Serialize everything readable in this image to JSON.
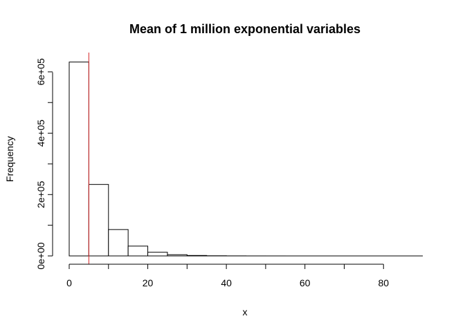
{
  "chart_data": {
    "type": "bar",
    "title": "Mean of 1 million exponential variables",
    "xlabel": "x",
    "ylabel": "Frequency",
    "bin_width": 5,
    "bins": [
      {
        "start": 0,
        "end": 5,
        "count": 632000
      },
      {
        "start": 5,
        "end": 10,
        "count": 233000
      },
      {
        "start": 10,
        "end": 15,
        "count": 86000
      },
      {
        "start": 15,
        "end": 20,
        "count": 32000
      },
      {
        "start": 20,
        "end": 25,
        "count": 12000
      },
      {
        "start": 25,
        "end": 30,
        "count": 4000
      },
      {
        "start": 30,
        "end": 35,
        "count": 1500
      },
      {
        "start": 35,
        "end": 40,
        "count": 550
      },
      {
        "start": 40,
        "end": 45,
        "count": 200
      },
      {
        "start": 45,
        "end": 50,
        "count": 75
      },
      {
        "start": 50,
        "end": 55,
        "count": 30
      },
      {
        "start": 55,
        "end": 60,
        "count": 10
      },
      {
        "start": 60,
        "end": 65,
        "count": 4
      },
      {
        "start": 65,
        "end": 70,
        "count": 2
      },
      {
        "start": 70,
        "end": 75,
        "count": 1
      },
      {
        "start": 75,
        "end": 80,
        "count": 0
      },
      {
        "start": 80,
        "end": 85,
        "count": 0
      },
      {
        "start": 85,
        "end": 90,
        "count": 1
      }
    ],
    "xlim": [
      0,
      90
    ],
    "ylim": [
      0,
      650000
    ],
    "x_ticks": [
      {
        "value": 0,
        "label": "0"
      },
      {
        "value": 20,
        "label": "20"
      },
      {
        "value": 40,
        "label": "40"
      },
      {
        "value": 60,
        "label": "60"
      },
      {
        "value": 80,
        "label": "80"
      }
    ],
    "x_minor_ticks": [
      10,
      30,
      50,
      70
    ],
    "y_ticks": [
      {
        "value": 0,
        "label": "0e+00"
      },
      {
        "value": 200000,
        "label": "2e+05"
      },
      {
        "value": 400000,
        "label": "4e+05"
      },
      {
        "value": 600000,
        "label": "6e+05"
      }
    ],
    "y_minor_ticks": [
      100000,
      300000,
      500000
    ],
    "mean_line": {
      "x": 5,
      "color": "#d62728"
    },
    "bar_fill": "#ffffff",
    "bar_stroke": "#000000",
    "grid": false,
    "legend": "none"
  }
}
